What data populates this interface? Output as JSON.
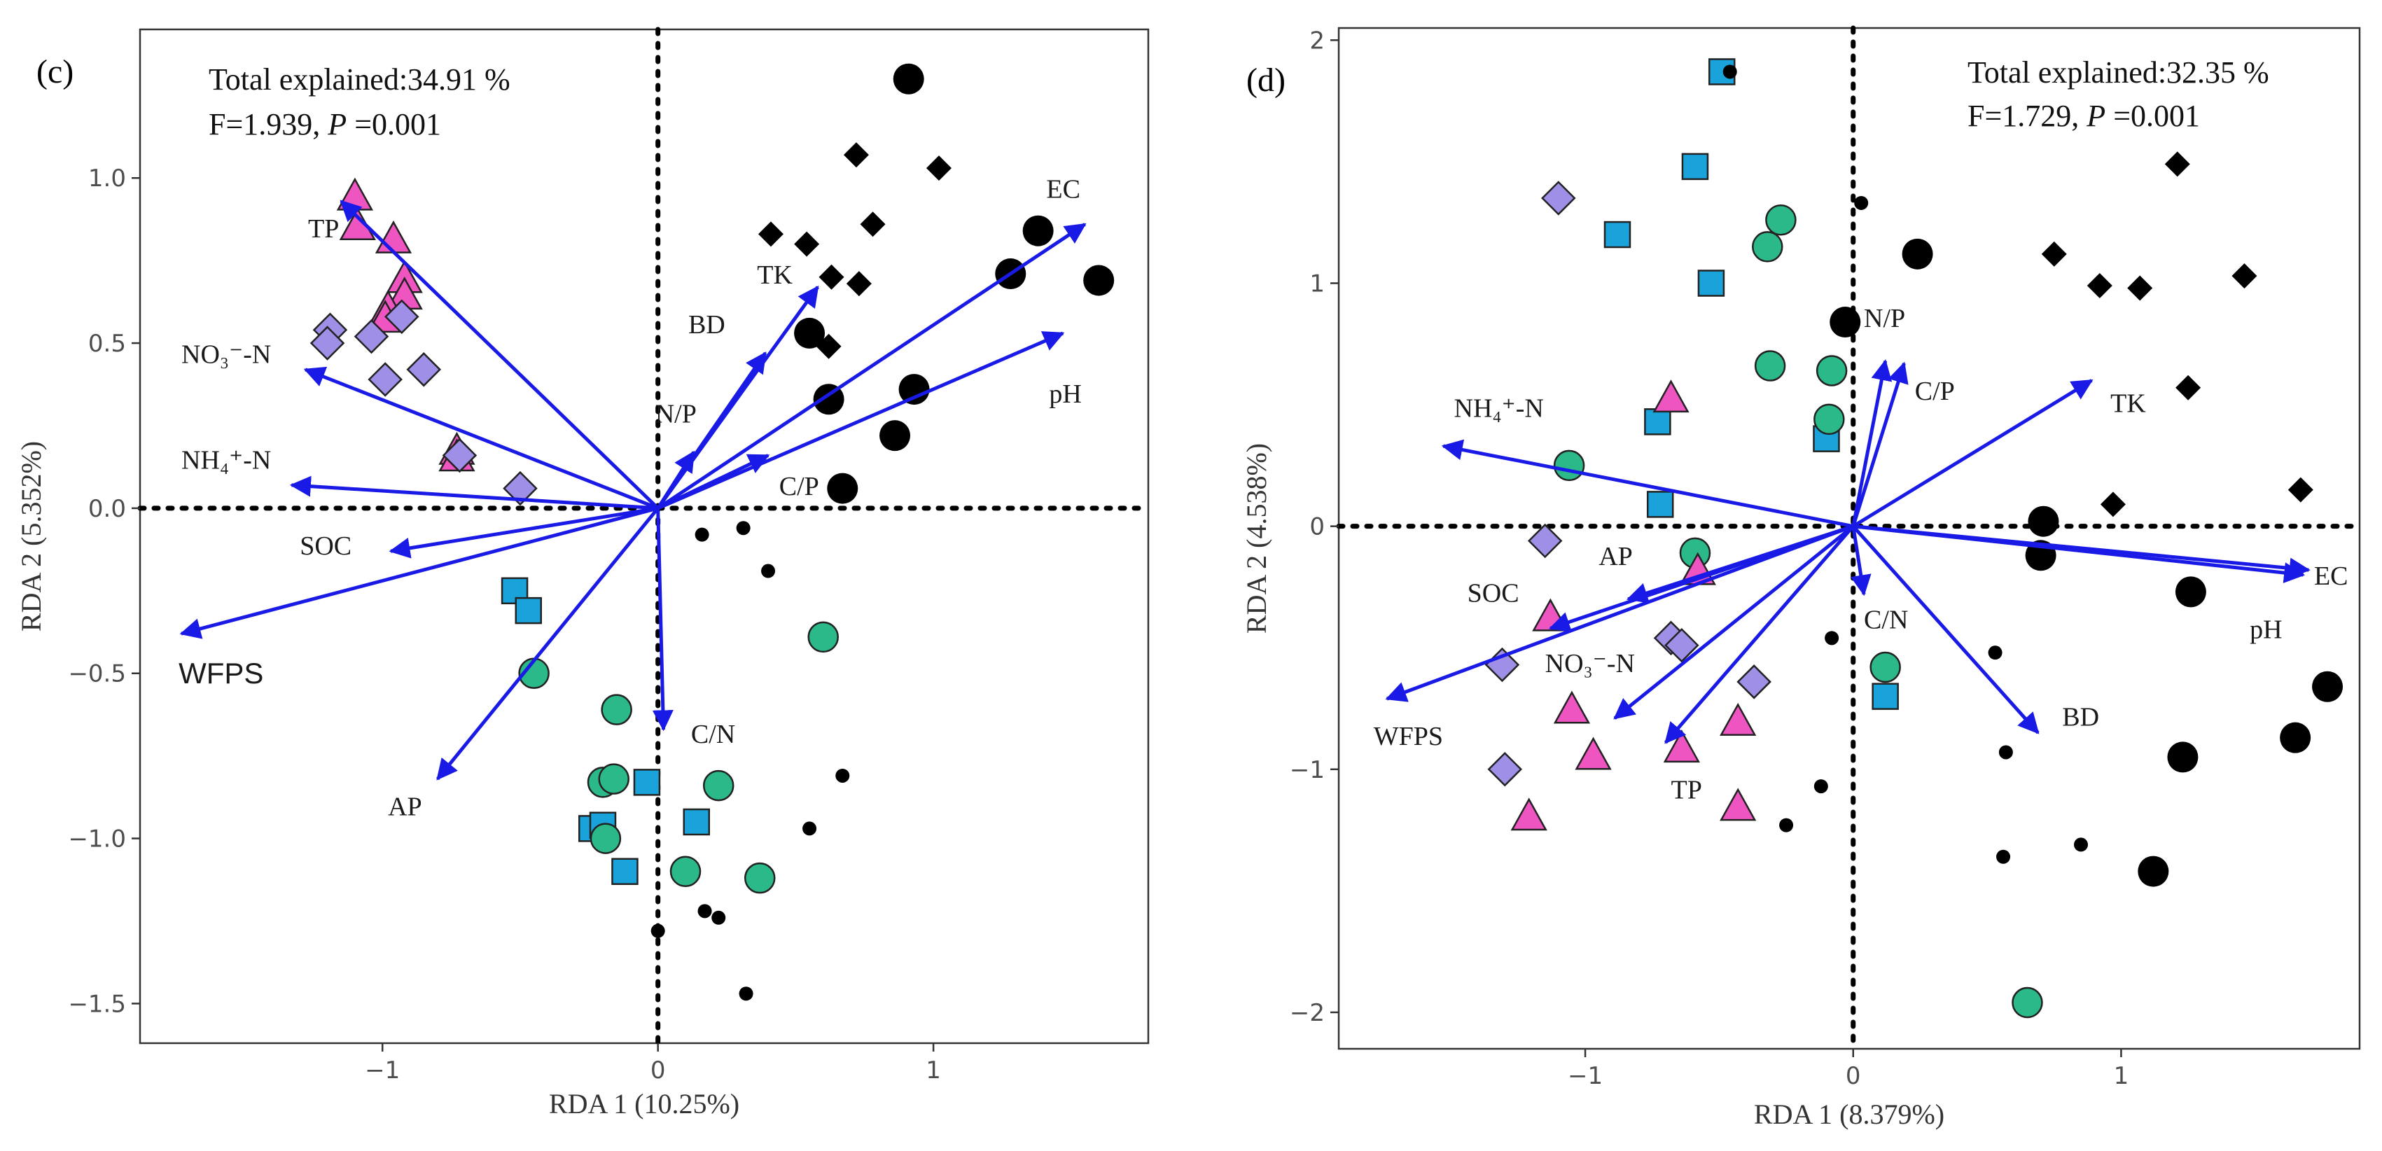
{
  "chart_data": [
    {
      "type": "scatter",
      "subtype": "rda-biplot",
      "panel_label": "(c)",
      "annotation": {
        "line1": "Total explained:34.91 %",
        "line2_prefix": "F=1.939, ",
        "line2_p": "P",
        "line2_suffix": " =0.001"
      },
      "xlabel": "RDA 1 (10.25%)",
      "ylabel": "RDA 2 (5.352%)",
      "xlim": [
        -1.88,
        1.78
      ],
      "ylim": [
        -1.62,
        1.45
      ],
      "xticks": [
        -1,
        0,
        1
      ],
      "yticks": [
        -1.5,
        -1.0,
        -0.5,
        0.0,
        0.5,
        1.0
      ],
      "xtick_labels": [
        "−1",
        "0",
        "1"
      ],
      "ytick_labels": [
        "−1.5",
        "−1.0",
        "−0.5",
        "0.0",
        "0.5",
        "1.0"
      ],
      "vectors": [
        {
          "name": "TP",
          "label": "TP",
          "x": -1.15,
          "y": 0.93,
          "lx": -1.27,
          "ly": 0.82,
          "sans": false
        },
        {
          "name": "NO3-N",
          "label": "NO₃⁻-N",
          "x": -1.28,
          "y": 0.42,
          "lx": -1.73,
          "ly": 0.44,
          "sans": false
        },
        {
          "name": "NH4-N",
          "label": "NH₄⁺-N",
          "x": -1.33,
          "y": 0.07,
          "lx": -1.73,
          "ly": 0.12,
          "sans": false
        },
        {
          "name": "SOC",
          "label": "SOC",
          "x": -0.97,
          "y": -0.13,
          "lx": -1.3,
          "ly": -0.14,
          "sans": false
        },
        {
          "name": "WFPS",
          "label": "WFPS",
          "x": -1.73,
          "y": -0.38,
          "lx": -1.74,
          "ly": -0.53,
          "sans": true
        },
        {
          "name": "AP",
          "label": "AP",
          "x": -0.8,
          "y": -0.82,
          "lx": -0.98,
          "ly": -0.93,
          "sans": false
        },
        {
          "name": "C/N",
          "label": "C/N",
          "x": 0.02,
          "y": -0.67,
          "lx": 0.12,
          "ly": -0.71,
          "sans": false
        },
        {
          "name": "N/P",
          "label": "N/P",
          "x": 0.13,
          "y": 0.17,
          "lx": -0.01,
          "ly": 0.26,
          "sans": false
        },
        {
          "name": "C/P",
          "label": "C/P",
          "x": 0.4,
          "y": 0.16,
          "lx": 0.44,
          "ly": 0.04,
          "sans": false
        },
        {
          "name": "BD",
          "label": "BD",
          "x": 0.39,
          "y": 0.47,
          "lx": 0.11,
          "ly": 0.53,
          "sans": false
        },
        {
          "name": "TK",
          "label": "TK",
          "x": 0.58,
          "y": 0.67,
          "lx": 0.36,
          "ly": 0.68,
          "sans": false
        },
        {
          "name": "EC",
          "label": "EC",
          "x": 1.55,
          "y": 0.86,
          "lx": 1.41,
          "ly": 0.94,
          "sans": false
        },
        {
          "name": "pH",
          "label": "pH",
          "x": 1.47,
          "y": 0.53,
          "lx": 1.42,
          "ly": 0.32,
          "sans": false
        }
      ],
      "groups": [
        {
          "name": "magenta-triangle",
          "shape": "triangle",
          "color": "#ee55c0",
          "size": 24,
          "points": [
            [
              -1.1,
              0.94
            ],
            [
              -1.09,
              0.85
            ],
            [
              -0.96,
              0.81
            ],
            [
              -0.92,
              0.69
            ],
            [
              -0.92,
              0.64
            ],
            [
              -0.98,
              0.6
            ],
            [
              -0.99,
              0.57
            ],
            [
              -0.73,
              0.17
            ],
            [
              -0.73,
              0.15
            ]
          ]
        },
        {
          "name": "lavender-diamond",
          "shape": "diamond",
          "color": "#9f8fe6",
          "size": 23,
          "points": [
            [
              -1.19,
              0.54
            ],
            [
              -1.2,
              0.5
            ],
            [
              -1.04,
              0.52
            ],
            [
              -0.93,
              0.58
            ],
            [
              -0.99,
              0.39
            ],
            [
              -0.85,
              0.42
            ],
            [
              -0.5,
              0.06
            ],
            [
              -0.72,
              0.16
            ]
          ]
        },
        {
          "name": "cyan-square",
          "shape": "square",
          "color": "#1aa3da",
          "size": 18,
          "points": [
            [
              -0.52,
              -0.25
            ],
            [
              -0.47,
              -0.31
            ],
            [
              -0.24,
              -0.97
            ],
            [
              -0.2,
              -0.96
            ],
            [
              -0.12,
              -1.1
            ],
            [
              -0.04,
              -0.83
            ],
            [
              0.14,
              -0.95
            ]
          ]
        },
        {
          "name": "green-circle",
          "shape": "circle",
          "color": "#2cb98a",
          "size": 21,
          "points": [
            [
              -0.45,
              -0.5
            ],
            [
              -0.15,
              -0.61
            ],
            [
              -0.2,
              -0.83
            ],
            [
              -0.16,
              -0.82
            ],
            [
              -0.19,
              -1.0
            ],
            [
              0.22,
              -0.84
            ],
            [
              0.1,
              -1.1
            ],
            [
              0.37,
              -1.12
            ],
            [
              0.6,
              -0.39
            ]
          ]
        },
        {
          "name": "black-circle-large",
          "shape": "circle",
          "color": "#000000",
          "size": 22,
          "points": [
            [
              0.91,
              1.3
            ],
            [
              1.38,
              0.84
            ],
            [
              1.28,
              0.71
            ],
            [
              1.6,
              0.69
            ],
            [
              0.55,
              0.53
            ],
            [
              0.62,
              0.33
            ],
            [
              0.93,
              0.36
            ],
            [
              0.86,
              0.22
            ],
            [
              0.67,
              0.06
            ]
          ]
        },
        {
          "name": "black-diamond",
          "shape": "diamond",
          "color": "#000000",
          "size": 18,
          "points": [
            [
              0.72,
              1.07
            ],
            [
              1.02,
              1.03
            ],
            [
              0.41,
              0.83
            ],
            [
              0.54,
              0.8
            ],
            [
              0.78,
              0.86
            ],
            [
              0.63,
              0.7
            ],
            [
              0.73,
              0.68
            ],
            [
              0.62,
              0.49
            ]
          ]
        },
        {
          "name": "black-circle-small",
          "shape": "circle",
          "color": "#000000",
          "size": 10,
          "points": [
            [
              0.16,
              -0.08
            ],
            [
              0.31,
              -0.06
            ],
            [
              0.4,
              -0.19
            ],
            [
              0.67,
              -0.81
            ],
            [
              0.55,
              -0.97
            ],
            [
              0.0,
              -1.28
            ],
            [
              0.17,
              -1.22
            ],
            [
              0.22,
              -1.24
            ],
            [
              0.32,
              -1.47
            ]
          ]
        }
      ]
    },
    {
      "type": "scatter",
      "subtype": "rda-biplot",
      "panel_label": "(d)",
      "annotation": {
        "line1": "Total explained:32.35 %",
        "line2_prefix": "F=1.729, ",
        "line2_p": "P",
        "line2_suffix": " =0.001"
      },
      "xlabel": "RDA 1 (8.379%)",
      "ylabel": "RDA 2 (4.538%)",
      "xlim": [
        -1.92,
        1.89
      ],
      "ylim": [
        -2.15,
        2.05
      ],
      "xticks": [
        -1,
        0,
        1
      ],
      "yticks": [
        -2,
        -1,
        0,
        1,
        2
      ],
      "xtick_labels": [
        "−1",
        "0",
        "1"
      ],
      "ytick_labels": [
        "−2",
        "−1",
        "0",
        "1",
        "2"
      ],
      "vectors": [
        {
          "name": "NH4-N",
          "label": "NH₄⁺-N",
          "x": -1.53,
          "y": 0.33,
          "lx": -1.49,
          "ly": 0.45,
          "sans": false
        },
        {
          "name": "AP",
          "label": "AP",
          "x": -0.84,
          "y": -0.3,
          "lx": -0.95,
          "ly": -0.16,
          "sans": false
        },
        {
          "name": "SOC",
          "label": "SOC",
          "x": -1.13,
          "y": -0.42,
          "lx": -1.44,
          "ly": -0.31,
          "sans": false
        },
        {
          "name": "WFPS",
          "label": "WFPS",
          "x": -1.74,
          "y": -0.71,
          "lx": -1.79,
          "ly": -0.9,
          "sans": false
        },
        {
          "name": "NO3-N",
          "label": "NO₃⁻-N",
          "x": -0.89,
          "y": -0.79,
          "lx": -1.15,
          "ly": -0.6,
          "sans": false
        },
        {
          "name": "TP",
          "label": "TP",
          "x": -0.7,
          "y": -0.89,
          "lx": -0.68,
          "ly": -1.12,
          "sans": false
        },
        {
          "name": "C/N",
          "label": "C/N",
          "x": 0.04,
          "y": -0.28,
          "lx": 0.04,
          "ly": -0.42,
          "sans": false
        },
        {
          "name": "BD",
          "label": "BD",
          "x": 0.69,
          "y": -0.85,
          "lx": 0.78,
          "ly": -0.82,
          "sans": false
        },
        {
          "name": "EC",
          "label": "EC",
          "x": 1.7,
          "y": -0.18,
          "lx": 1.72,
          "ly": -0.24,
          "sans": false
        },
        {
          "name": "pH",
          "label": "pH",
          "x": 1.68,
          "y": -0.2,
          "lx": 1.48,
          "ly": -0.46,
          "sans": false
        },
        {
          "name": "TK",
          "label": "TK",
          "x": 0.89,
          "y": 0.6,
          "lx": 0.96,
          "ly": 0.47,
          "sans": false
        },
        {
          "name": "C/P",
          "label": "C/P",
          "x": 0.19,
          "y": 0.67,
          "lx": 0.23,
          "ly": 0.52,
          "sans": false
        },
        {
          "name": "N/P",
          "label": "N/P",
          "x": 0.12,
          "y": 0.68,
          "lx": 0.04,
          "ly": 0.82,
          "sans": false
        }
      ],
      "groups": [
        {
          "name": "cyan-square",
          "shape": "square",
          "color": "#1aa3da",
          "size": 18,
          "points": [
            [
              -0.49,
              1.87
            ],
            [
              -0.59,
              1.48
            ],
            [
              -0.88,
              1.2
            ],
            [
              -0.53,
              1.0
            ],
            [
              -0.73,
              0.43
            ],
            [
              -0.72,
              0.09
            ],
            [
              -0.1,
              0.36
            ],
            [
              0.12,
              -0.7
            ]
          ]
        },
        {
          "name": "green-circle",
          "shape": "circle",
          "color": "#2cb98a",
          "size": 21,
          "points": [
            [
              -0.27,
              1.26
            ],
            [
              -0.32,
              1.15
            ],
            [
              -0.31,
              0.66
            ],
            [
              -0.08,
              0.64
            ],
            [
              -0.09,
              0.44
            ],
            [
              -1.06,
              0.25
            ],
            [
              -0.59,
              -0.11
            ],
            [
              0.12,
              -0.58
            ],
            [
              0.65,
              -1.96
            ]
          ]
        },
        {
          "name": "lavender-diamond",
          "shape": "diamond",
          "color": "#9f8fe6",
          "size": 23,
          "points": [
            [
              -1.1,
              1.35
            ],
            [
              -1.15,
              -0.06
            ],
            [
              -1.31,
              -0.57
            ],
            [
              -0.68,
              -0.46
            ],
            [
              -0.64,
              -0.49
            ],
            [
              -0.37,
              -0.64
            ],
            [
              -1.3,
              -1.0
            ]
          ]
        },
        {
          "name": "magenta-triangle",
          "shape": "triangle",
          "color": "#ee55c0",
          "size": 24,
          "points": [
            [
              -0.68,
              0.52
            ],
            [
              -0.58,
              -0.19
            ],
            [
              -1.13,
              -0.38
            ],
            [
              -1.05,
              -0.76
            ],
            [
              -0.97,
              -0.95
            ],
            [
              -0.64,
              -0.92
            ],
            [
              -0.43,
              -0.81
            ],
            [
              -0.43,
              -1.16
            ],
            [
              -1.21,
              -1.2
            ]
          ]
        },
        {
          "name": "black-circle-large",
          "shape": "circle",
          "color": "#000000",
          "size": 22,
          "points": [
            [
              0.24,
              1.12
            ],
            [
              -0.03,
              0.84
            ],
            [
              0.71,
              0.02
            ],
            [
              0.7,
              -0.12
            ],
            [
              1.26,
              -0.27
            ],
            [
              1.23,
              -0.95
            ],
            [
              1.77,
              -0.66
            ],
            [
              1.65,
              -0.87
            ],
            [
              1.12,
              -1.42
            ]
          ]
        },
        {
          "name": "black-diamond",
          "shape": "diamond",
          "color": "#000000",
          "size": 18,
          "points": [
            [
              1.21,
              1.49
            ],
            [
              0.75,
              1.12
            ],
            [
              0.92,
              0.99
            ],
            [
              1.07,
              0.98
            ],
            [
              1.46,
              1.03
            ],
            [
              1.25,
              0.57
            ],
            [
              0.97,
              0.09
            ],
            [
              1.67,
              0.15
            ]
          ]
        },
        {
          "name": "black-circle-small",
          "shape": "circle",
          "color": "#000000",
          "size": 10,
          "points": [
            [
              -0.46,
              1.87
            ],
            [
              0.03,
              1.33
            ],
            [
              -0.08,
              -0.46
            ],
            [
              -0.12,
              -1.07
            ],
            [
              -0.25,
              -1.23
            ],
            [
              0.53,
              -0.52
            ],
            [
              0.57,
              -0.93
            ],
            [
              0.56,
              -1.36
            ],
            [
              0.85,
              -1.31
            ]
          ]
        }
      ]
    }
  ]
}
